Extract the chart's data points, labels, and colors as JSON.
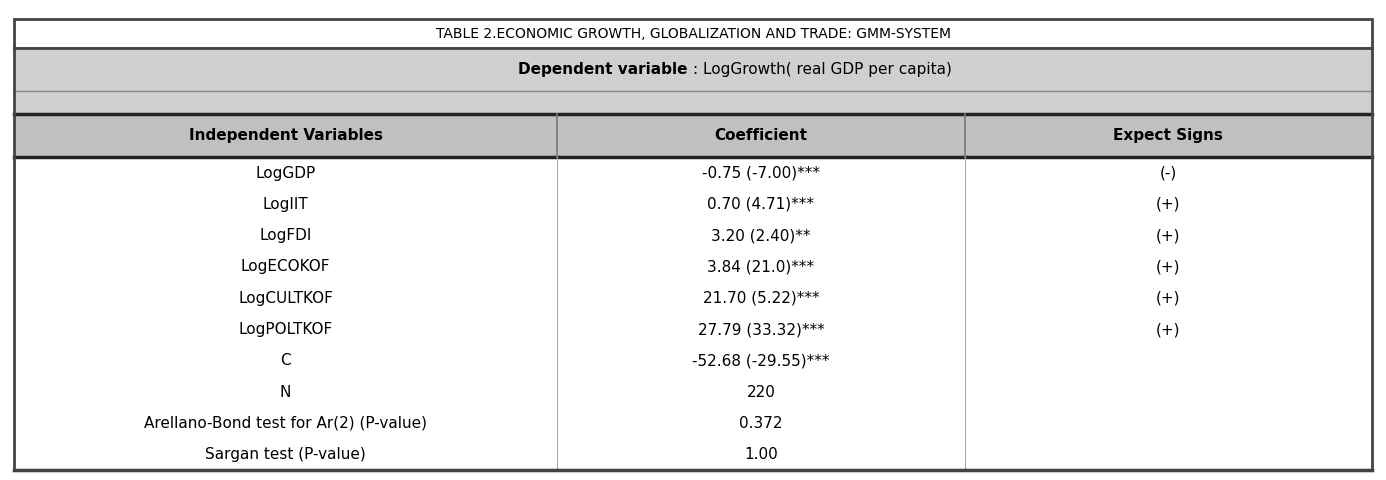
{
  "title": "TABLE 2.ECONOMIC GROWTH, GLOBALIZATION AND TRADE: GMM-SYSTEM",
  "subtitle_bold": "Dependent variable ",
  "subtitle_normal": ": LogGrowth( real GDP per capita)",
  "col_headers": [
    "Independent Variables",
    "Coefficient",
    "Expect Signs"
  ],
  "rows": [
    [
      "LogGDP",
      "-0.75 (-7.00)***",
      "(-)"
    ],
    [
      "LogIIT",
      "0.70 (4.71)***",
      "(+)"
    ],
    [
      "LogFDI",
      "3.20 (2.40)**",
      "(+)"
    ],
    [
      "LogECOKOF",
      "3.84 (21.0)***",
      "(+)"
    ],
    [
      "LogCULTKOF",
      "21.70 (5.22)***",
      "(+)"
    ],
    [
      "LogPOLTKOF",
      "27.79 (33.32)***",
      "(+)"
    ],
    [
      "C",
      "-52.68 (-29.55)***",
      ""
    ],
    [
      "N",
      "220",
      ""
    ],
    [
      "Arellano-Bond test for Ar(2) (P-value)",
      "0.372",
      ""
    ],
    [
      "Sargan test (P-value)",
      "1.00",
      ""
    ]
  ],
  "header_bg": "#c0c0c0",
  "subheader_bg": "#d0d0d0",
  "title_fontsize": 10,
  "header_fontsize": 11,
  "data_fontsize": 11
}
